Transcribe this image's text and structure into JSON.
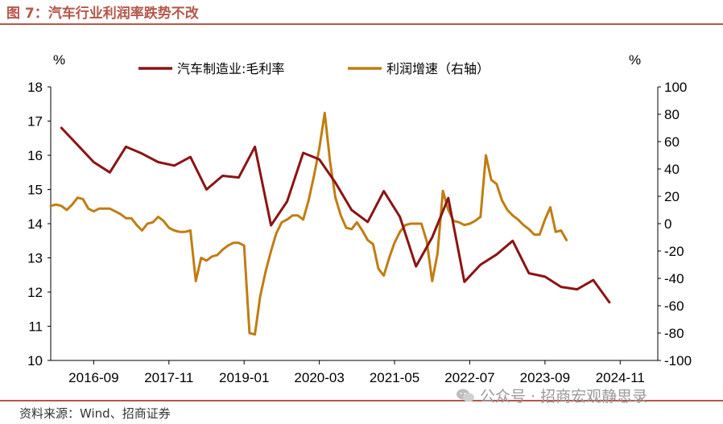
{
  "figure": {
    "title": "图 7：汽车行业利润率跌势不改",
    "source": "资料来源：Wind、招商证券",
    "watermark": "公众号 · 招商宏观静思录"
  },
  "colors": {
    "margin_series": "#8b1414",
    "profit_series": "#c07d12",
    "accent": "#b4574a"
  },
  "chart_data": {
    "type": "line",
    "title": "",
    "legend_position": "top-center",
    "y_left": {
      "unit": "%",
      "min": 10,
      "max": 18,
      "step": 1,
      "ticks": [
        "10",
        "11",
        "12",
        "13",
        "14",
        "15",
        "16",
        "17",
        "18"
      ]
    },
    "y_right": {
      "unit": "%",
      "min": -100,
      "max": 100,
      "step": 20,
      "ticks": [
        "-100",
        "-80",
        "-60",
        "-40",
        "-20",
        "0",
        "20",
        "40",
        "60",
        "80",
        "100"
      ]
    },
    "x_axis": {
      "start": "2016-01",
      "end": "2025-06",
      "tick_labels": [
        "2016-09",
        "2017-11",
        "2019-01",
        "2020-03",
        "2021-05",
        "2022-07",
        "2023-09",
        "2024-11"
      ]
    },
    "series": [
      {
        "name": "汽车制造业:毛利率",
        "axis": "left",
        "points": [
          [
            "2016-03",
            16.8
          ],
          [
            "2016-06",
            16.3
          ],
          [
            "2016-09",
            15.8
          ],
          [
            "2016-12",
            15.5
          ],
          [
            "2017-03",
            16.25
          ],
          [
            "2017-06",
            16.05
          ],
          [
            "2017-09",
            15.8
          ],
          [
            "2017-12",
            15.7
          ],
          [
            "2018-03",
            15.95
          ],
          [
            "2018-06",
            15.0
          ],
          [
            "2018-09",
            15.4
          ],
          [
            "2018-12",
            15.35
          ],
          [
            "2019-03",
            16.25
          ],
          [
            "2019-06",
            13.95
          ],
          [
            "2019-09",
            14.65
          ],
          [
            "2019-12",
            16.07
          ],
          [
            "2020-03",
            15.88
          ],
          [
            "2020-06",
            15.2
          ],
          [
            "2020-09",
            14.4
          ],
          [
            "2020-12",
            14.05
          ],
          [
            "2021-03",
            14.95
          ],
          [
            "2021-06",
            14.2
          ],
          [
            "2021-09",
            12.75
          ],
          [
            "2021-12",
            13.6
          ],
          [
            "2022-03",
            14.75
          ],
          [
            "2022-06",
            12.3
          ],
          [
            "2022-09",
            12.8
          ],
          [
            "2022-12",
            13.1
          ],
          [
            "2023-03",
            13.5
          ],
          [
            "2023-06",
            12.55
          ],
          [
            "2023-09",
            12.45
          ],
          [
            "2023-12",
            12.15
          ],
          [
            "2024-03",
            12.08
          ],
          [
            "2024-06",
            12.35
          ],
          [
            "2024-09",
            11.7
          ]
        ]
      },
      {
        "name": "利润增速（右轴）",
        "axis": "right",
        "points": [
          [
            "2016-01",
            13
          ],
          [
            "2016-02",
            14
          ],
          [
            "2016-03",
            13
          ],
          [
            "2016-04",
            10
          ],
          [
            "2016-05",
            14
          ],
          [
            "2016-06",
            19
          ],
          [
            "2016-07",
            18
          ],
          [
            "2016-08",
            11
          ],
          [
            "2016-09",
            9
          ],
          [
            "2016-10",
            11
          ],
          [
            "2016-11",
            11
          ],
          [
            "2016-12",
            11
          ],
          [
            "2017-01",
            9
          ],
          [
            "2017-02",
            7
          ],
          [
            "2017-03",
            4
          ],
          [
            "2017-04",
            4
          ],
          [
            "2017-05",
            -1
          ],
          [
            "2017-06",
            -5
          ],
          [
            "2017-07",
            0
          ],
          [
            "2017-08",
            1
          ],
          [
            "2017-09",
            5
          ],
          [
            "2017-10",
            2
          ],
          [
            "2017-11",
            -3
          ],
          [
            "2017-12",
            -5
          ],
          [
            "2018-01",
            -6
          ],
          [
            "2018-02",
            -6
          ],
          [
            "2018-03",
            -5
          ],
          [
            "2018-04",
            -42
          ],
          [
            "2018-05",
            -25
          ],
          [
            "2018-06",
            -27
          ],
          [
            "2018-07",
            -24
          ],
          [
            "2018-08",
            -23
          ],
          [
            "2018-09",
            -19
          ],
          [
            "2018-10",
            -16
          ],
          [
            "2018-11",
            -14
          ],
          [
            "2018-12",
            -14
          ],
          [
            "2019-01",
            -16
          ],
          [
            "2019-02",
            -80
          ],
          [
            "2019-03",
            -81
          ],
          [
            "2019-04",
            -53
          ],
          [
            "2019-05",
            -35
          ],
          [
            "2019-06",
            -20
          ],
          [
            "2019-07",
            -7
          ],
          [
            "2019-08",
            1
          ],
          [
            "2019-09",
            3
          ],
          [
            "2019-10",
            6
          ],
          [
            "2019-11",
            6
          ],
          [
            "2019-12",
            3
          ],
          [
            "2020-01",
            17
          ],
          [
            "2020-02",
            35
          ],
          [
            "2020-03",
            55
          ],
          [
            "2020-04",
            81
          ],
          [
            "2020-05",
            45
          ],
          [
            "2020-06",
            19
          ],
          [
            "2020-07",
            6
          ],
          [
            "2020-08",
            -3
          ],
          [
            "2020-09",
            -4
          ],
          [
            "2020-10",
            1
          ],
          [
            "2020-11",
            -5
          ],
          [
            "2020-12",
            -12
          ],
          [
            "2021-01",
            -15
          ],
          [
            "2021-02",
            -33
          ],
          [
            "2021-03",
            -38
          ],
          [
            "2021-04",
            -25
          ],
          [
            "2021-05",
            -14
          ],
          [
            "2021-06",
            -6
          ],
          [
            "2021-07",
            -1
          ],
          [
            "2021-08",
            0
          ],
          [
            "2021-09",
            0
          ],
          [
            "2021-10",
            0
          ],
          [
            "2021-11",
            -13
          ],
          [
            "2021-12",
            -42
          ],
          [
            "2022-01",
            -22
          ],
          [
            "2022-02",
            24
          ],
          [
            "2022-03",
            10
          ],
          [
            "2022-04",
            2
          ],
          [
            "2022-05",
            1
          ],
          [
            "2022-06",
            -1
          ],
          [
            "2022-07",
            0
          ],
          [
            "2022-08",
            2
          ],
          [
            "2022-09",
            5
          ],
          [
            "2022-10",
            50
          ],
          [
            "2022-11",
            32
          ],
          [
            "2022-12",
            29
          ],
          [
            "2023-01",
            17
          ],
          [
            "2023-02",
            10
          ],
          [
            "2023-03",
            6
          ],
          [
            "2023-04",
            3
          ],
          [
            "2023-05",
            -1
          ],
          [
            "2023-06",
            -4
          ],
          [
            "2023-07",
            -8
          ],
          [
            "2023-08",
            -8
          ],
          [
            "2023-09",
            3
          ],
          [
            "2023-10",
            12
          ],
          [
            "2023-11",
            -6
          ],
          [
            "2023-12",
            -5
          ],
          [
            "2024-01",
            -12
          ]
        ]
      }
    ]
  }
}
